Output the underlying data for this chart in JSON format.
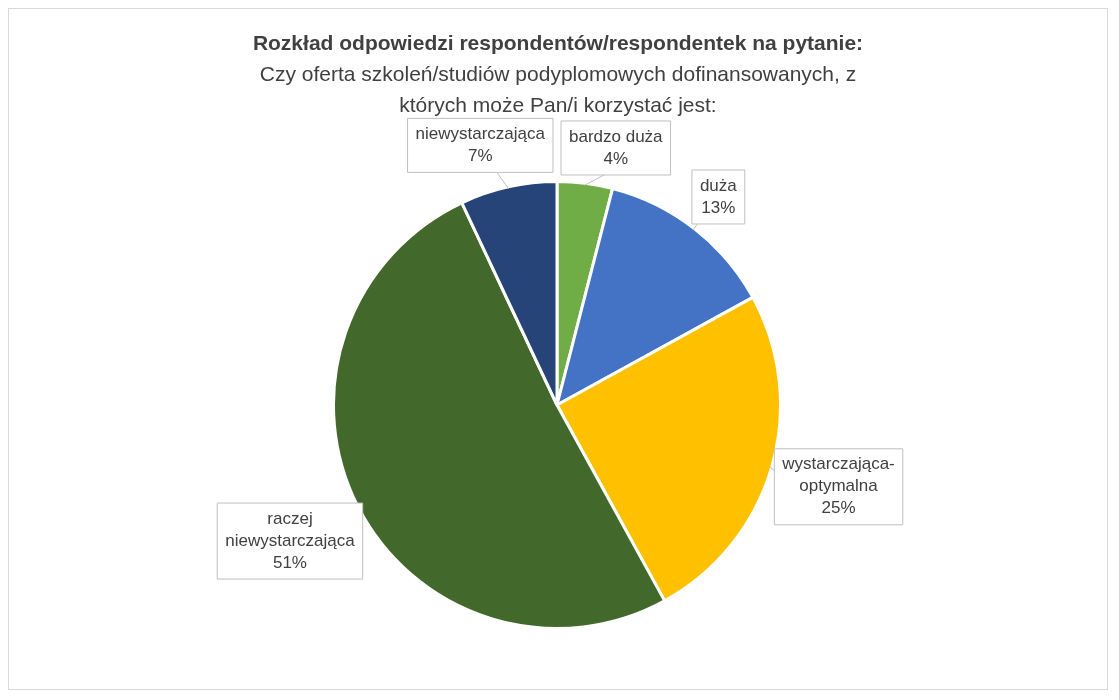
{
  "chart_data": {
    "type": "pie",
    "title": "Rozkład odpowiedzi respondentów/respondentek na pytanie:",
    "subtitle": "Czy oferta szkoleń/studiów podyplomowych dofinansowanych, z których może Pan/i korzystać jest:",
    "categories": [
      "bardzo duża",
      "duża",
      "wystarczająca-optymalna",
      "raczej niewystarczająca",
      "niewystarczająca"
    ],
    "values": [
      4,
      13,
      25,
      51,
      7
    ],
    "colors": [
      "#70ad47",
      "#4472c4",
      "#ffc000",
      "#43682b",
      "#264478"
    ],
    "value_labels": [
      "4%",
      "13%",
      "25%",
      "51%",
      "7%"
    ]
  }
}
